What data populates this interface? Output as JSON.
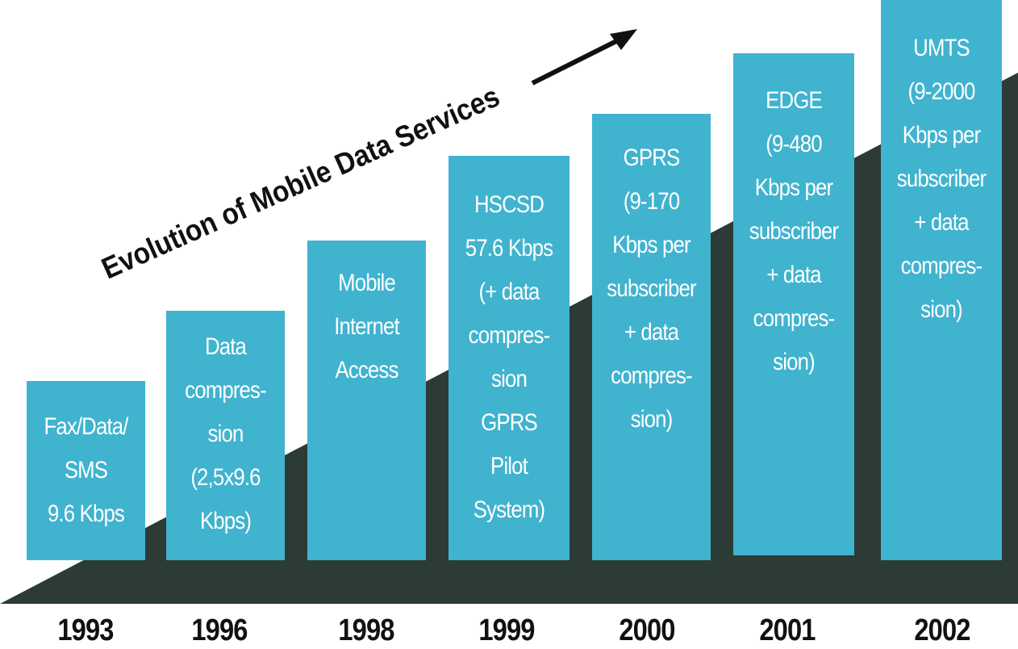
{
  "colors": {
    "bar_fill": "#40b3cf",
    "bar_text": "#ffffff",
    "ramp": "#2c3b36",
    "year_text": "#111111"
  },
  "title": "Evolution of Mobile Data Services",
  "stages": [
    {
      "year": "1993",
      "label": "Fax/Data/\nSMS\n9.6 Kbps"
    },
    {
      "year": "1996",
      "label": "Data\ncompres-\nsion\n(2,5x9.6\nKbps)"
    },
    {
      "year": "1998",
      "label": "Mobile\nInternet\nAccess"
    },
    {
      "year": "1999",
      "label": "HSCSD\n57.6 Kbps\n(+ data\ncompres-\nsion\nGPRS\nPilot\nSystem)"
    },
    {
      "year": "2000",
      "label": "GPRS\n(9-170\nKbps per\nsubscriber\n+ data\ncompres-\nsion)"
    },
    {
      "year": "2001",
      "label": "EDGE\n(9-480\nKbps per\nsubscriber\n+ data\ncompres-\nsion)"
    },
    {
      "year": "2002",
      "label": "UMTS\n(9-2000\nKbps per\nsubscriber\n+ data\ncompres-\nsion)"
    }
  ]
}
